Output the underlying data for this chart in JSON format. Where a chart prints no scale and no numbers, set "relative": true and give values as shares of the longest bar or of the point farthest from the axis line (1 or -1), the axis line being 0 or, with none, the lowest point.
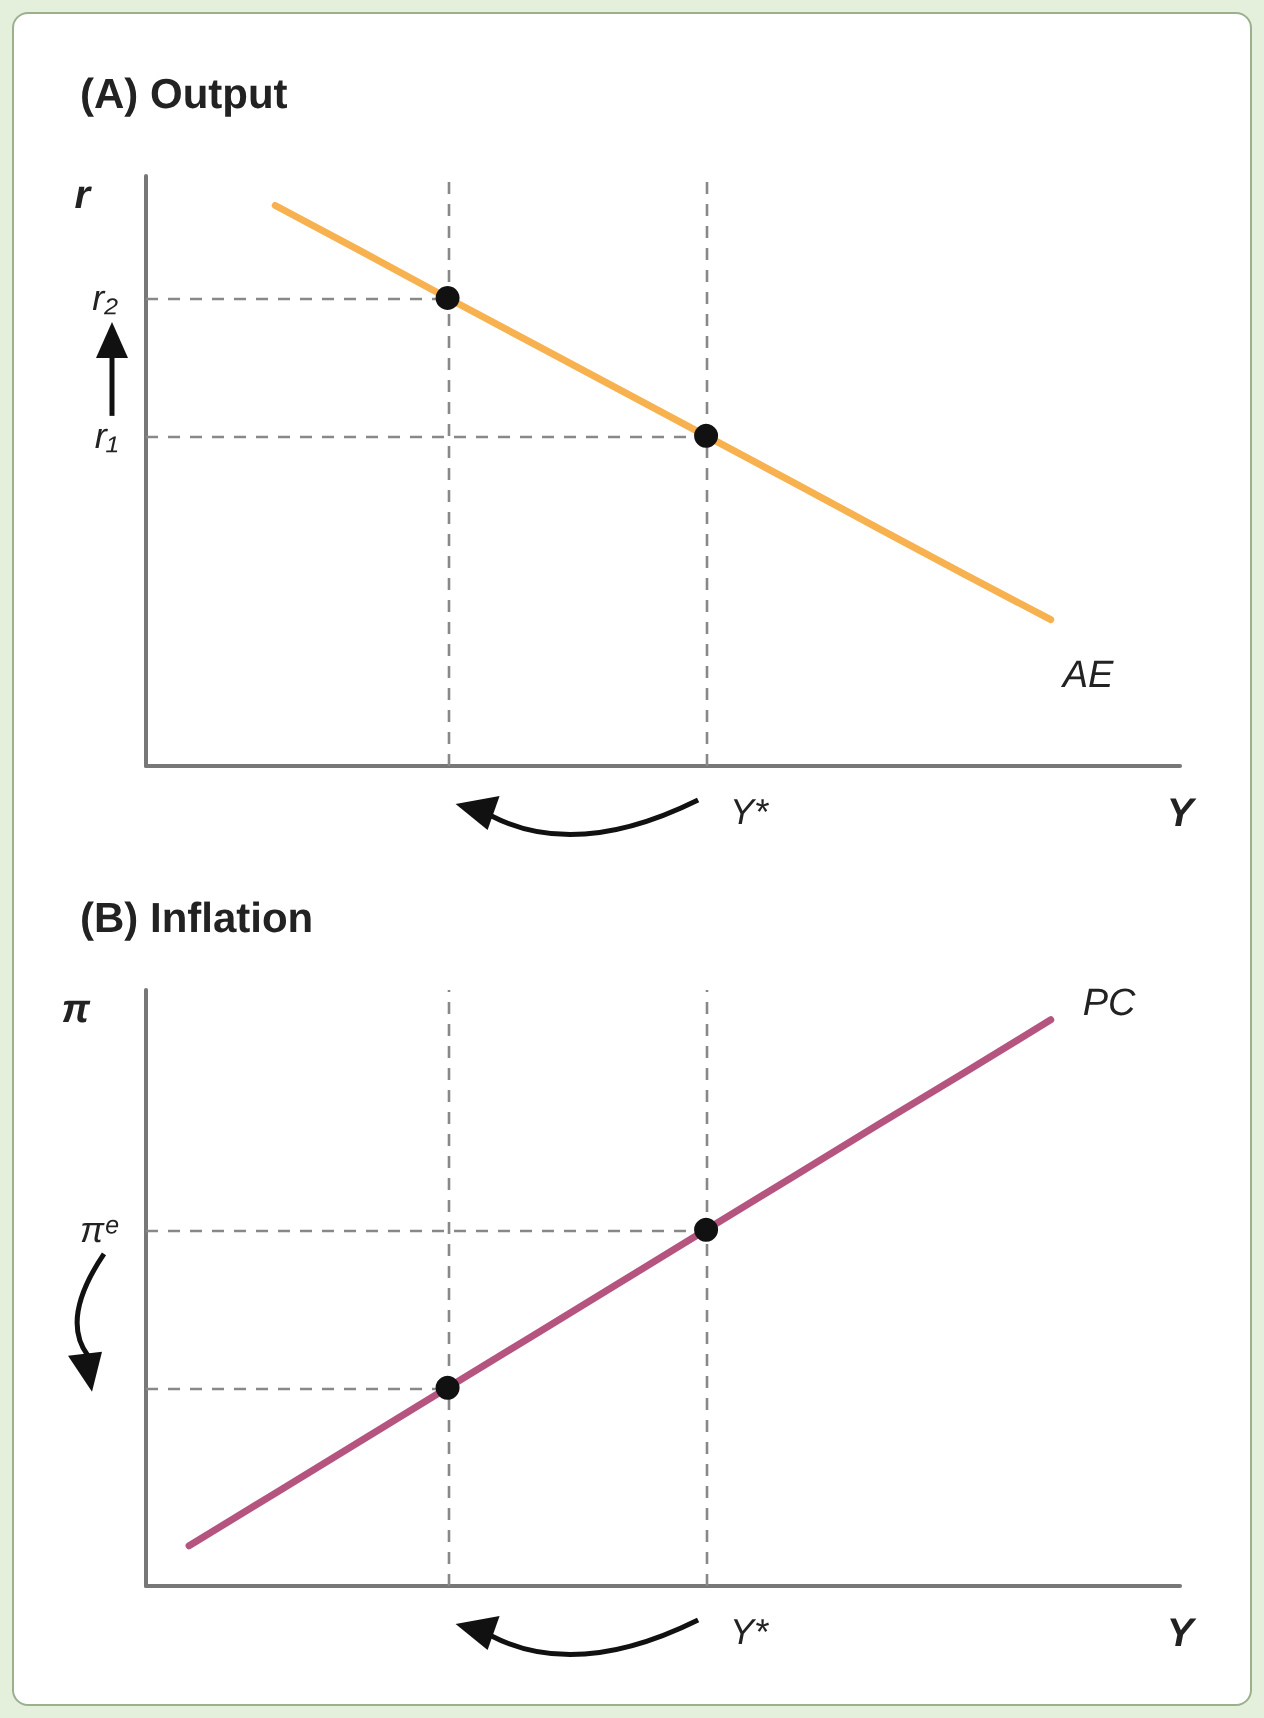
{
  "chart_data": [
    {
      "type": "line",
      "title": "(A) Output",
      "xlabel": "Y",
      "ylabel": "r",
      "relative": true,
      "grid": false,
      "legend": false,
      "categories": [
        null,
        null,
        null,
        null,
        null,
        null,
        null,
        null,
        null,
        null,
        null,
        null
      ],
      "series": [
        {
          "name": "AE",
          "color": "#f7b24f",
          "values": [
            null,
            1,
            0.918,
            0.835,
            0.753,
            0.671,
            0.589,
            0.507,
            0.424,
            0.342,
            0.261,
            null
          ]
        }
      ],
      "ref_lines": [
        {
          "axis": "y",
          "value": 0.835,
          "label": "r₂",
          "color": "#888888",
          "line_style": "dashed"
        },
        {
          "axis": "y",
          "value": 0.589,
          "label": "r₁",
          "color": "#888888",
          "line_style": "dashed"
        }
      ],
      "annotations": [
        "Y*"
      ]
    },
    {
      "type": "line",
      "title": "(B) Inflation",
      "xlabel": "Y",
      "ylabel": "π",
      "relative": true,
      "grid": false,
      "legend": false,
      "categories": [
        null,
        null,
        null,
        null,
        null,
        null,
        null,
        null,
        null,
        null,
        null,
        null
      ],
      "series": [
        {
          "name": "PC",
          "color": "#b5547f",
          "values": [
            0.071,
            0.164,
            0.257,
            0.35,
            0.443,
            0.536,
            0.629,
            0.722,
            0.815,
            0.907,
            1,
            null
          ]
        }
      ],
      "ref_lines": [
        {
          "axis": "y",
          "value": 0.629,
          "label": "πᵉ",
          "color": "#888888",
          "line_style": "dashed"
        },
        {
          "axis": "y",
          "value": 0.35,
          "color": "#888888",
          "line_style": "dashed"
        }
      ],
      "annotations": [
        "Y*"
      ]
    }
  ]
}
